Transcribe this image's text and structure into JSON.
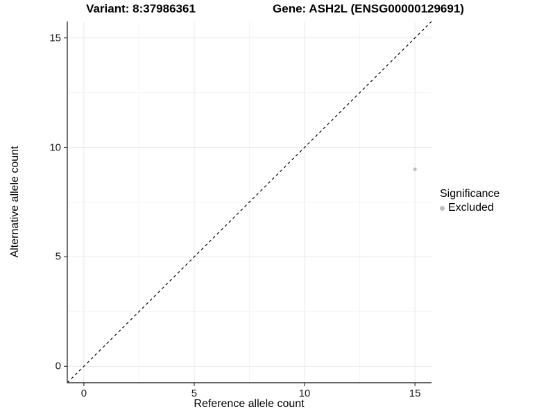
{
  "chart_data": {
    "type": "scatter",
    "title_left": "Variant: 8:37986361",
    "title_right": "Gene: ASH2L (ENSG00000129691)",
    "xlabel": "Reference allele count",
    "ylabel": "Alternative allele count",
    "xlim": [
      -0.75,
      15.75
    ],
    "ylim": [
      -0.75,
      15.75
    ],
    "major_ticks": [
      0,
      5,
      10,
      15
    ],
    "minor_ticks": [
      2.5,
      7.5,
      12.5
    ],
    "grid": "major+minor",
    "legend_position": "right",
    "series": [
      {
        "name": "Excluded",
        "color": "#bebebe",
        "points": [
          {
            "x": 15,
            "y": 9
          }
        ]
      }
    ],
    "reference_line": {
      "kind": "identity y=x",
      "from": [
        -0.75,
        -0.75
      ],
      "to": [
        15.75,
        15.75
      ],
      "style": "dashed",
      "color": "#000000"
    },
    "legend": {
      "title": "Significance",
      "items": [
        {
          "label": "Excluded",
          "color": "#bebebe"
        }
      ]
    }
  },
  "colors": {
    "background": "#ffffff",
    "grid_major": "#e9e9e9",
    "grid_minor": "#f4f4f4",
    "axis_line": "#333333",
    "tick_mark": "#333333",
    "tick_text": "#1a1a1a",
    "point": "#bebebe",
    "dashed_line": "#000000"
  }
}
